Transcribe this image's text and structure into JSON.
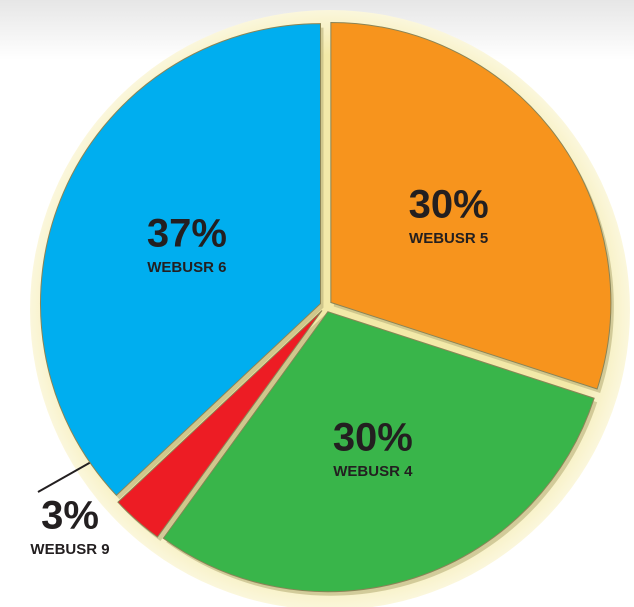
{
  "chart_data": {
    "type": "pie",
    "categories": [
      "WEBUSR 5",
      "WEBUSR 4",
      "WEBUSR 9",
      "WEBUSR 6"
    ],
    "values": [
      30,
      30,
      3,
      37
    ],
    "value_labels": [
      "30%",
      "30%",
      "3%",
      "37%"
    ],
    "colors": [
      "#f7941d",
      "#39b54a",
      "#ed1c24",
      "#00aeef"
    ]
  }
}
